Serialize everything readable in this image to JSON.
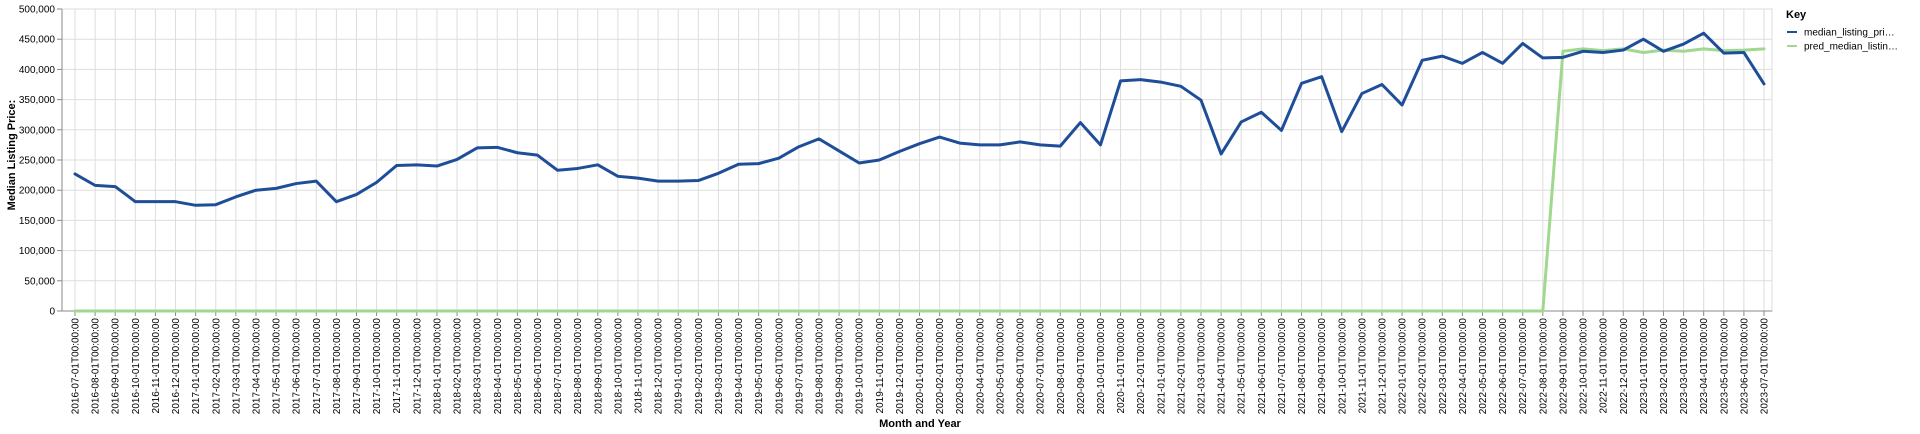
{
  "chart_data": {
    "type": "line",
    "xlabel": "Month and Year",
    "ylabel": "Median Listing Price:",
    "ylim": [
      0,
      500000
    ],
    "yticks": [
      "0",
      "50,000",
      "100,000",
      "150,000",
      "200,000",
      "250,000",
      "300,000",
      "350,000",
      "400,000",
      "450,000",
      "500,000"
    ],
    "grid": true,
    "legend": {
      "title": "Key",
      "placement": "right"
    },
    "x": [
      "2016-07-01T00:00:00",
      "2016-08-01T00:00:00",
      "2016-09-01T00:00:00",
      "2016-10-01T00:00:00",
      "2016-11-01T00:00:00",
      "2016-12-01T00:00:00",
      "2017-01-01T00:00:00",
      "2017-02-01T00:00:00",
      "2017-03-01T00:00:00",
      "2017-04-01T00:00:00",
      "2017-05-01T00:00:00",
      "2017-06-01T00:00:00",
      "2017-07-01T00:00:00",
      "2017-08-01T00:00:00",
      "2017-09-01T00:00:00",
      "2017-10-01T00:00:00",
      "2017-11-01T00:00:00",
      "2017-12-01T00:00:00",
      "2018-01-01T00:00:00",
      "2018-02-01T00:00:00",
      "2018-03-01T00:00:00",
      "2018-04-01T00:00:00",
      "2018-05-01T00:00:00",
      "2018-06-01T00:00:00",
      "2018-07-01T00:00:00",
      "2018-08-01T00:00:00",
      "2018-09-01T00:00:00",
      "2018-10-01T00:00:00",
      "2018-11-01T00:00:00",
      "2018-12-01T00:00:00",
      "2019-01-01T00:00:00",
      "2019-02-01T00:00:00",
      "2019-03-01T00:00:00",
      "2019-04-01T00:00:00",
      "2019-05-01T00:00:00",
      "2019-06-01T00:00:00",
      "2019-07-01T00:00:00",
      "2019-08-01T00:00:00",
      "2019-09-01T00:00:00",
      "2019-10-01T00:00:00",
      "2019-11-01T00:00:00",
      "2019-12-01T00:00:00",
      "2020-01-01T00:00:00",
      "2020-02-01T00:00:00",
      "2020-03-01T00:00:00",
      "2020-04-01T00:00:00",
      "2020-05-01T00:00:00",
      "2020-06-01T00:00:00",
      "2020-07-01T00:00:00",
      "2020-08-01T00:00:00",
      "2020-09-01T00:00:00",
      "2020-10-01T00:00:00",
      "2020-11-01T00:00:00",
      "2020-12-01T00:00:00",
      "2021-01-01T00:00:00",
      "2021-02-01T00:00:00",
      "2021-03-01T00:00:00",
      "2021-04-01T00:00:00",
      "2021-05-01T00:00:00",
      "2021-06-01T00:00:00",
      "2021-07-01T00:00:00",
      "2021-08-01T00:00:00",
      "2021-09-01T00:00:00",
      "2021-10-01T00:00:00",
      "2021-11-01T00:00:00",
      "2021-12-01T00:00:00",
      "2022-01-01T00:00:00",
      "2022-02-01T00:00:00",
      "2022-03-01T00:00:00",
      "2022-04-01T00:00:00",
      "2022-05-01T00:00:00",
      "2022-06-01T00:00:00",
      "2022-07-01T00:00:00",
      "2022-08-01T00:00:00",
      "2022-09-01T00:00:00",
      "2022-10-01T00:00:00",
      "2022-11-01T00:00:00",
      "2022-12-01T00:00:00",
      "2023-01-01T00:00:00",
      "2023-02-01T00:00:00",
      "2023-03-01T00:00:00",
      "2023-04-01T00:00:00",
      "2023-05-01T00:00:00",
      "2023-06-01T00:00:00",
      "2023-07-01T00:00:00"
    ],
    "series": [
      {
        "name": "median_listing_pri…",
        "color": "#1f4e99",
        "values": [
          227000,
          208000,
          206000,
          181000,
          181000,
          181000,
          175000,
          176000,
          189000,
          200000,
          203000,
          211000,
          215000,
          181000,
          193000,
          213000,
          241000,
          242000,
          240000,
          251000,
          270000,
          271000,
          262000,
          258000,
          233000,
          236000,
          242000,
          223000,
          220000,
          215000,
          215000,
          216000,
          228000,
          243000,
          244000,
          253000,
          272000,
          285000,
          265000,
          245000,
          250000,
          264000,
          277000,
          288000,
          278000,
          275000,
          275000,
          280000,
          275000,
          273000,
          312000,
          275000,
          381000,
          383000,
          379000,
          372000,
          349000,
          260000,
          313000,
          329000,
          299000,
          377000,
          388000,
          297000,
          360000,
          375000,
          341000,
          415000,
          422000,
          410000,
          428000,
          410000,
          443000,
          419000,
          420000,
          430000,
          428000,
          432000,
          450000,
          430000,
          442000,
          460000,
          427000,
          428000,
          376000
        ]
      },
      {
        "name": "pred_median_listin…",
        "color": "#9fd88e",
        "values": [
          0,
          0,
          0,
          0,
          0,
          0,
          0,
          0,
          0,
          0,
          0,
          0,
          0,
          0,
          0,
          0,
          0,
          0,
          0,
          0,
          0,
          0,
          0,
          0,
          0,
          0,
          0,
          0,
          0,
          0,
          0,
          0,
          0,
          0,
          0,
          0,
          0,
          0,
          0,
          0,
          0,
          0,
          0,
          0,
          0,
          0,
          0,
          0,
          0,
          0,
          0,
          0,
          0,
          0,
          0,
          0,
          0,
          0,
          0,
          0,
          0,
          0,
          0,
          0,
          0,
          0,
          0,
          0,
          0,
          0,
          0,
          0,
          0,
          0,
          430000,
          434000,
          431000,
          434000,
          428000,
          432000,
          430000,
          434000,
          431000,
          432000,
          434000
        ]
      }
    ]
  }
}
